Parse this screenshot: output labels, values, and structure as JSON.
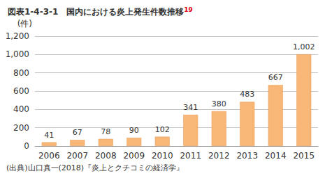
{
  "chart_data": {
    "type": "bar",
    "title": "図表1-4-3-1　国内における炎上発生件数推移",
    "title_footnote": "19",
    "y_label": "(件)",
    "source": "(出典)山口真一(2018)『炎上とクチコミの経済学』",
    "categories": [
      "2006",
      "2007",
      "2008",
      "2009",
      "2010",
      "2011",
      "2012",
      "2013",
      "2014",
      "2015"
    ],
    "values": [
      41,
      67,
      78,
      90,
      102,
      341,
      380,
      483,
      667,
      1002
    ],
    "value_labels": [
      "41",
      "67",
      "78",
      "90",
      "102",
      "341",
      "380",
      "483",
      "667",
      "1,002"
    ],
    "color": "#f8b677",
    "ylim": [
      0,
      1200
    ],
    "yticks": [
      0,
      200,
      400,
      600,
      800,
      {
        "value": 1000,
        "label": "1,000"
      },
      {
        "value": 1200,
        "label": "1,200"
      }
    ],
    "grid": true,
    "data_labels": true
  }
}
